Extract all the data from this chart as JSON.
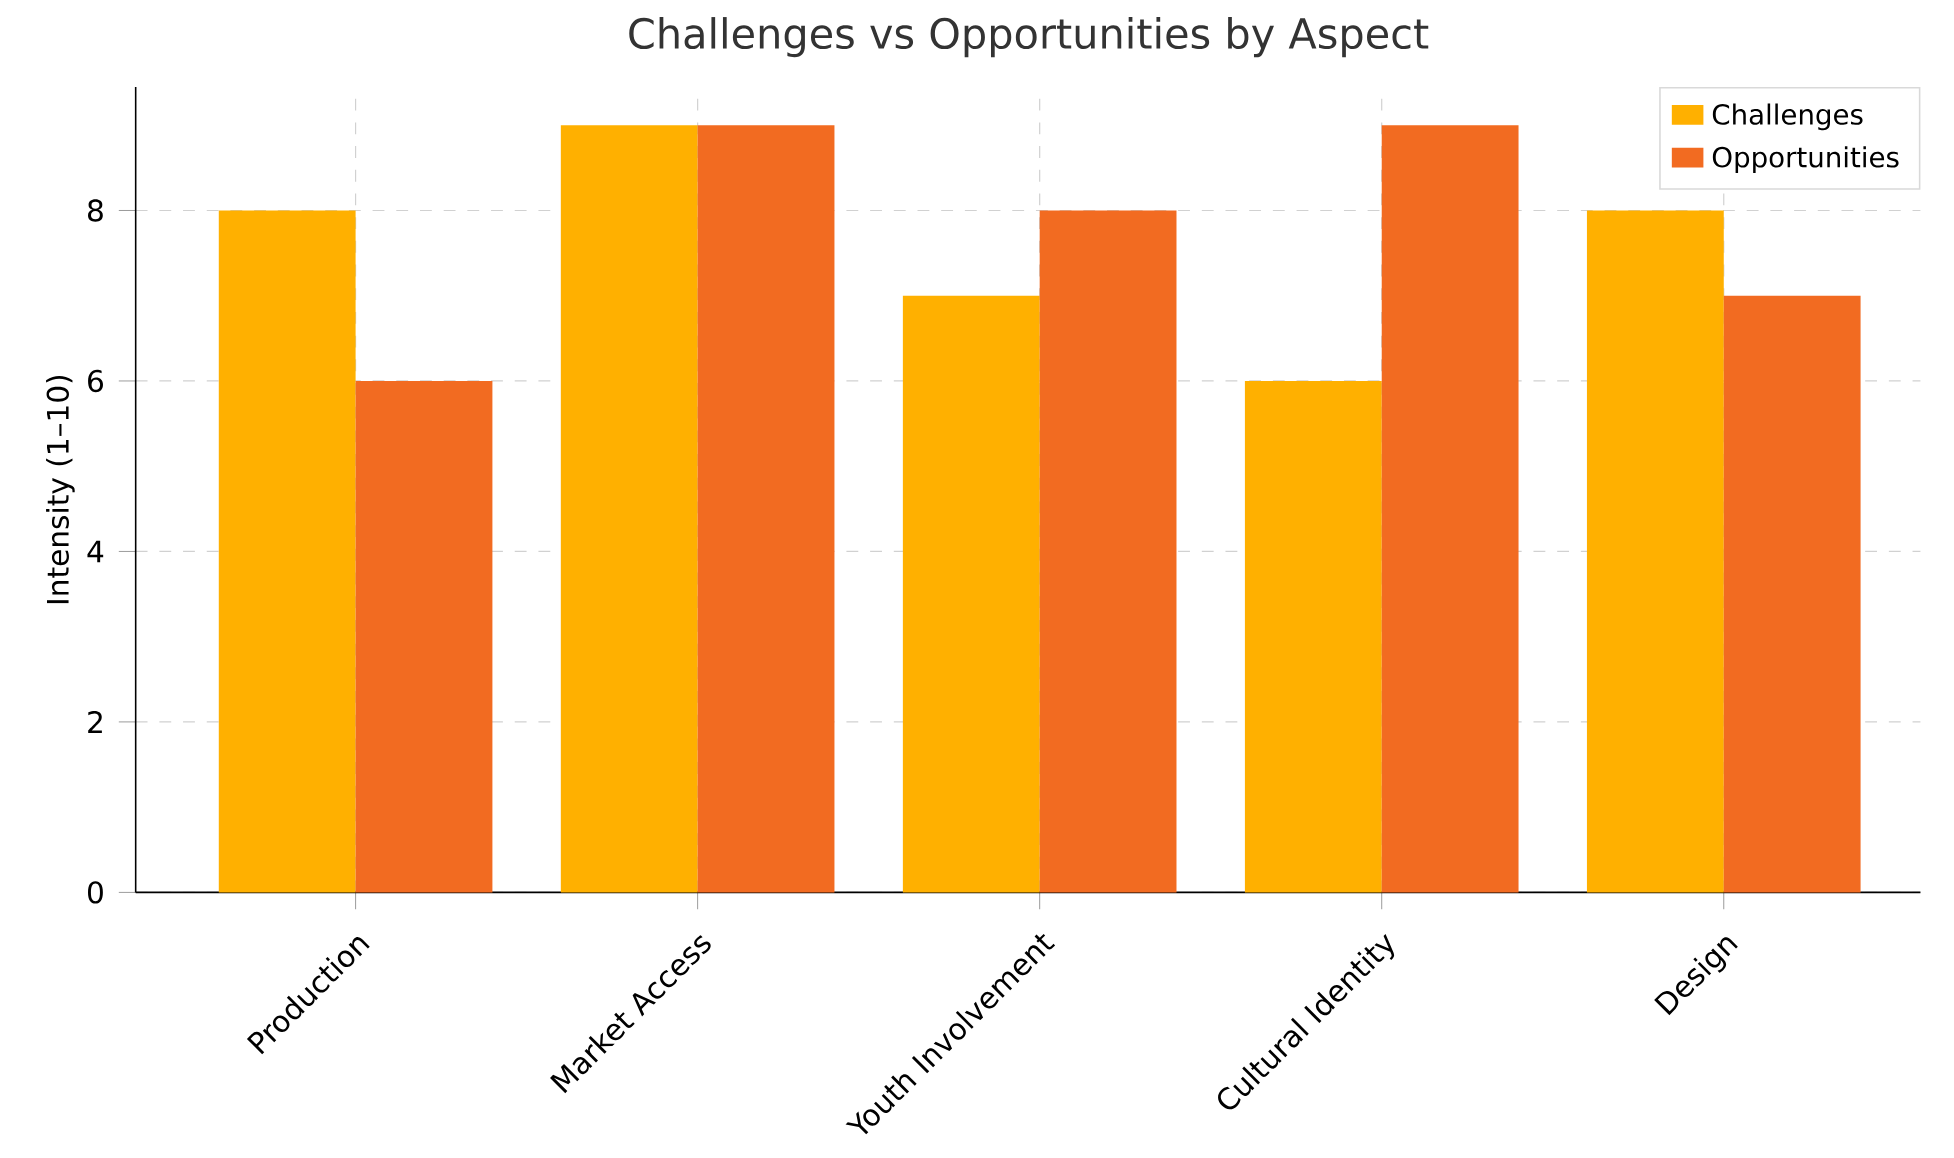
{
  "chart_data": {
    "type": "bar",
    "title": "Challenges vs Opportunities by Aspect",
    "ylabel": "Intensity (1–10)",
    "categories": [
      "Production",
      "Market Access",
      "Youth Involvement",
      "Cultural Identity",
      "Design"
    ],
    "series": [
      {
        "name": "Challenges",
        "color": "#ffb000",
        "values": [
          8,
          9,
          7,
          6,
          8
        ]
      },
      {
        "name": "Opportunities",
        "color": "#f26b21",
        "values": [
          6,
          9,
          8,
          9,
          7
        ]
      }
    ],
    "ylim": [
      0,
      9.45
    ],
    "yticks": [
      0,
      2,
      4,
      6,
      8
    ],
    "grid": true,
    "legend": "top right"
  }
}
